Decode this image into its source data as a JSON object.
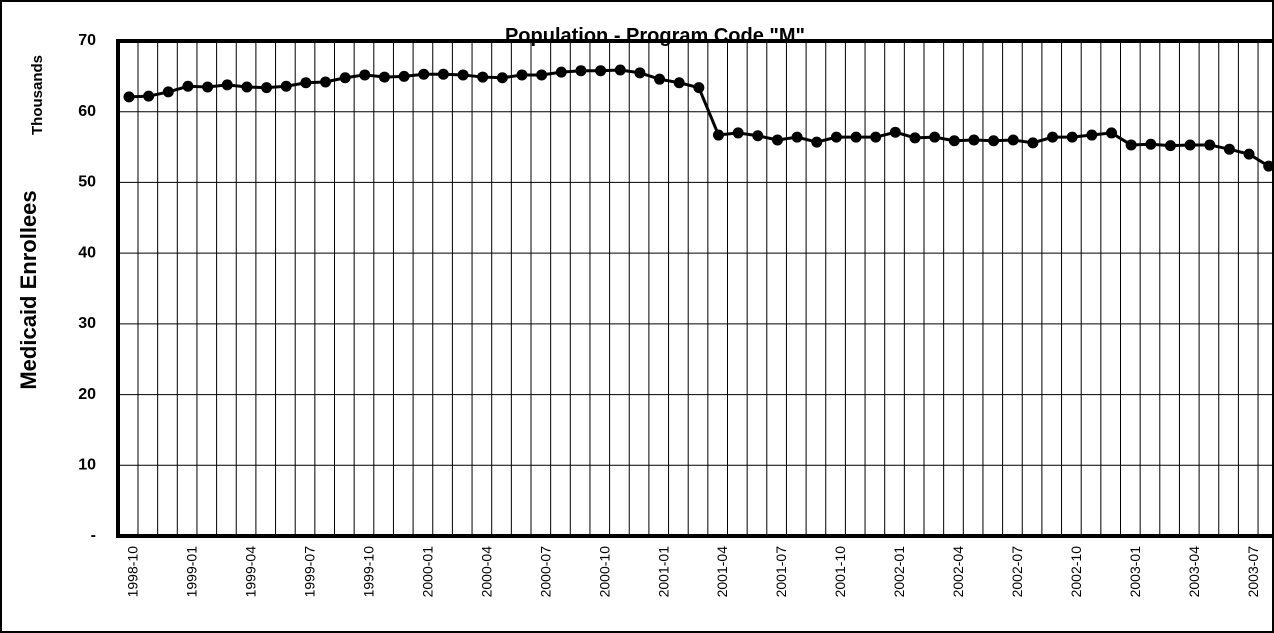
{
  "chart_data": {
    "type": "line",
    "title": "Population - Program Code \"M\"",
    "ylabel": "Medicaid Enrollees",
    "yunit": "Thousands",
    "categories": [
      "1998-10",
      null,
      null,
      "1999-01",
      null,
      null,
      "1999-04",
      null,
      null,
      "1999-07",
      null,
      null,
      "1999-10",
      null,
      null,
      "2000-01",
      null,
      null,
      "2000-04",
      null,
      null,
      "2000-07",
      null,
      null,
      "2000-10",
      null,
      null,
      "2001-01",
      null,
      null,
      "2001-04",
      null,
      null,
      "2001-07",
      null,
      null,
      "2001-10",
      null,
      null,
      "2002-01",
      null,
      null,
      "2002-04",
      null,
      null,
      "2002-07",
      null,
      null,
      "2002-10",
      null,
      null,
      "2003-01",
      null,
      null,
      "2003-04",
      null,
      null,
      "2003-07",
      null
    ],
    "series": [
      {
        "name": "Medicaid Enrollees",
        "color": "#000000",
        "values": [
          62.1,
          62.2,
          62.8,
          63.6,
          63.5,
          63.8,
          63.5,
          63.4,
          63.6,
          64.1,
          64.2,
          64.8,
          65.2,
          64.9,
          65.0,
          65.3,
          65.3,
          65.2,
          64.9,
          64.8,
          65.2,
          65.2,
          65.6,
          65.8,
          65.8,
          65.9,
          65.5,
          64.6,
          64.1,
          63.4,
          56.7,
          57.0,
          56.6,
          56.0,
          56.4,
          55.7,
          56.4,
          56.4,
          56.4,
          57.1,
          56.3,
          56.4,
          55.9,
          56.0,
          55.9,
          56.0,
          55.6,
          56.4,
          56.4,
          56.7,
          57.0,
          55.3,
          55.4,
          55.2,
          55.3,
          55.3,
          54.7,
          54.0,
          52.3
        ]
      }
    ],
    "ylim": [
      0,
      70
    ],
    "yticks": [
      {
        "value": 0,
        "label": "-"
      },
      10,
      20,
      30,
      40,
      50,
      60,
      70
    ],
    "grid": true
  }
}
